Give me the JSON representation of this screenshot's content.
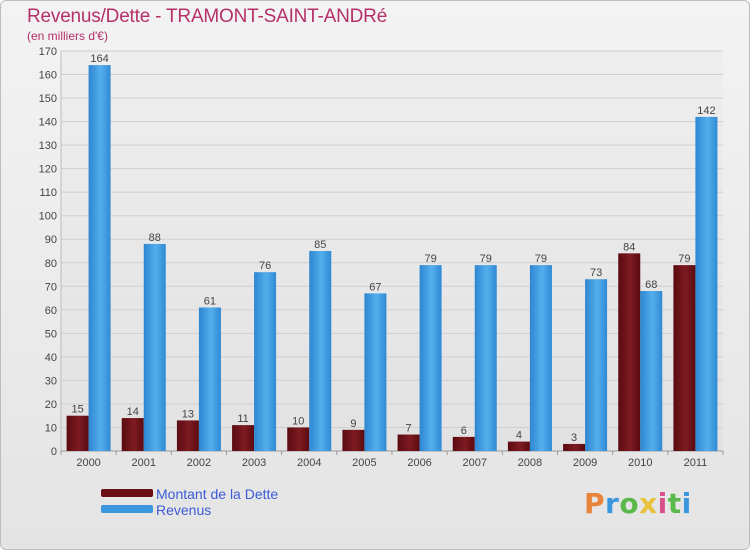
{
  "header": {
    "title": "Revenus/Dette - TRAMONT-SAINT-ANDRé",
    "subtitle": "(en milliers d'€)"
  },
  "legend": {
    "items": [
      {
        "label": "Montant de la Dette",
        "color": "#6b0f14"
      },
      {
        "label": "Revenus",
        "color": "#3a97de"
      }
    ]
  },
  "brand": {
    "logo_text": "Proxiti"
  },
  "colors": {
    "debt": "#6b0f14",
    "revenue": "#3a97de",
    "axis_text": "#444444",
    "grid": "#cfcfcf"
  },
  "chart_data": {
    "type": "bar",
    "categories": [
      "2000",
      "2001",
      "2002",
      "2003",
      "2004",
      "2005",
      "2006",
      "2007",
      "2008",
      "2009",
      "2010",
      "2011"
    ],
    "series": [
      {
        "name": "Montant de la Dette",
        "values": [
          15,
          14,
          13,
          11,
          10,
          9,
          7,
          6,
          4,
          3,
          84,
          79
        ]
      },
      {
        "name": "Revenus",
        "values": [
          164,
          88,
          61,
          76,
          85,
          67,
          79,
          79,
          79,
          73,
          68,
          142
        ]
      }
    ],
    "yticks": [
      0,
      10,
      20,
      30,
      40,
      50,
      60,
      70,
      80,
      90,
      100,
      110,
      120,
      130,
      140,
      150,
      160,
      170
    ],
    "ylim": [
      0,
      170
    ],
    "grid": true,
    "legend_position": "bottom-left"
  }
}
